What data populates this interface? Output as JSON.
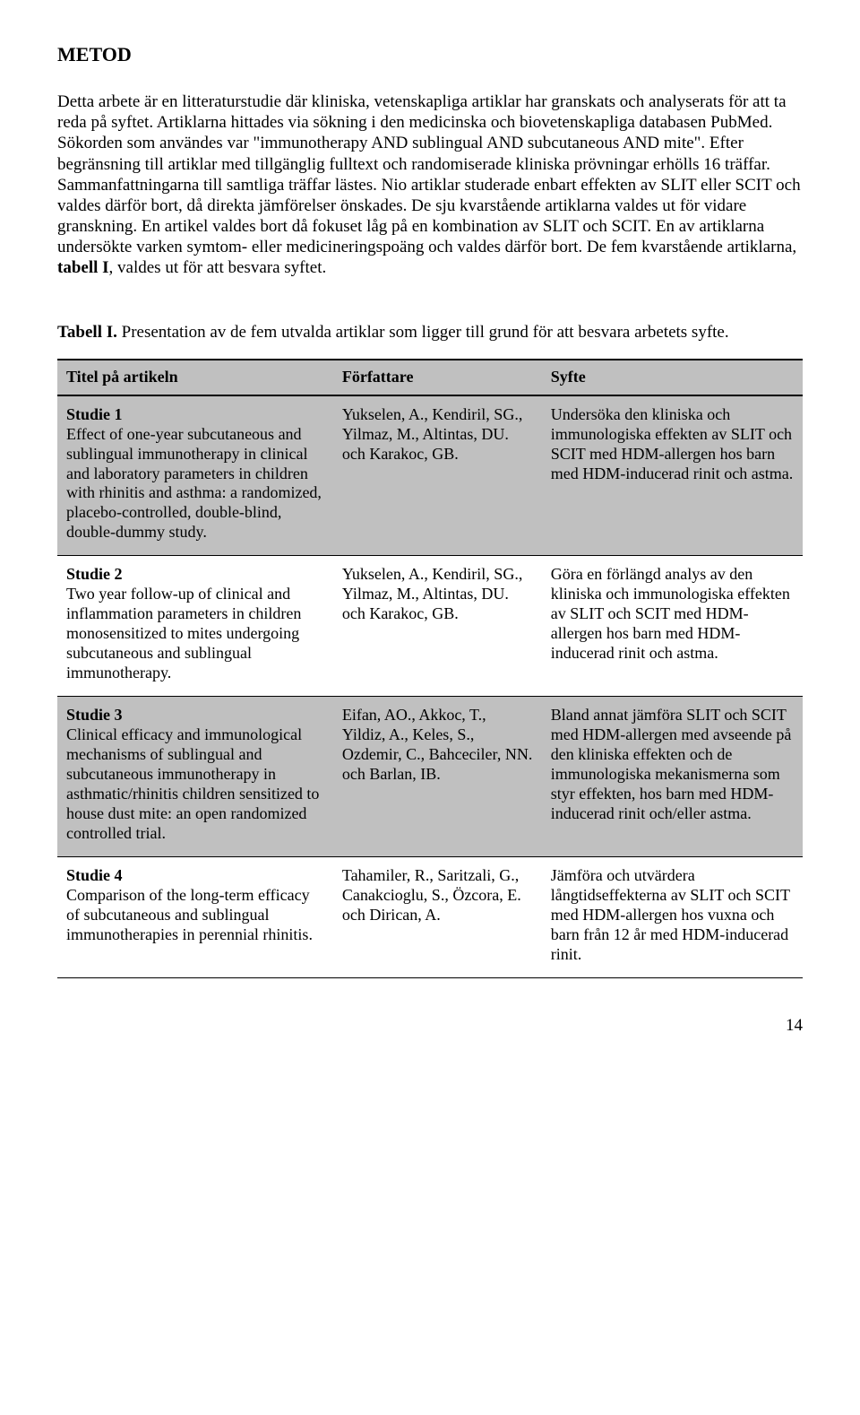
{
  "heading": "METOD",
  "paragraph_parts": {
    "p1": "Detta arbete är en litteraturstudie där kliniska, vetenskapliga artiklar har granskats och analyserats för att ta reda på syftet. Artiklarna hittades via sökning i den medicinska och biovetenskapliga databasen PubMed. Sökorden som användes var \"immunotherapy AND sublingual AND subcutaneous AND mite\". Efter begränsning till artiklar med tillgänglig fulltext och randomiserade kliniska prövningar erhölls 16 träffar. Sammanfattningarna till samtliga träffar lästes. Nio artiklar studerade enbart effekten av SLIT eller SCIT och valdes därför bort, då direkta jämförelser önskades. De sju kvarstående artiklarna valdes ut för vidare granskning. En artikel valdes bort då fokuset låg på en kombination av SLIT och SCIT. En av artiklarna undersökte varken symtom- eller medicineringspoäng och valdes därför bort. De fem kvarstående artiklarna, ",
    "bold": "tabell I",
    "p2": ", valdes ut för att besvara syftet."
  },
  "table_intro": {
    "bold": "Tabell I.",
    "rest": " Presentation av de fem utvalda artiklar som ligger till grund för att besvara arbetets syfte."
  },
  "columns": {
    "title": "Titel på artikeln",
    "authors": "Författare",
    "purpose": "Syfte"
  },
  "rows": [
    {
      "shaded": true,
      "study": "Studie 1",
      "title": "Effect of one-year subcutaneous and sublingual immunotherapy in clinical and laboratory parameters in children with rhinitis and asthma: a randomized, placebo-controlled, double-blind, double-dummy study.",
      "authors": "Yukselen, A., Kendiril, SG., Yilmaz, M., Altintas, DU. och Karakoc, GB.",
      "purpose": "Undersöka den kliniska och immunologiska effekten av SLIT och SCIT med HDM-allergen hos barn med HDM-inducerad rinit och astma."
    },
    {
      "shaded": false,
      "study": "Studie 2",
      "title": "Two year follow-up of clinical and inflammation parameters in children monosensitized to mites undergoing subcutaneous and sublingual immunotherapy.",
      "authors": "Yukselen, A., Kendiril, SG., Yilmaz, M., Altintas, DU. och Karakoc, GB.",
      "purpose": "Göra en förlängd analys av den kliniska och immunologiska effekten av SLIT och SCIT med HDM-allergen hos barn med HDM-inducerad rinit och astma."
    },
    {
      "shaded": true,
      "study": "Studie 3",
      "title": "Clinical efficacy and immunological mechanisms of sublingual and subcutaneous immunotherapy in asthmatic/rhinitis children sensitized to house dust mite: an open randomized controlled trial.",
      "authors": "Eifan, AO., Akkoc, T., Yildiz, A., Keles, S., Ozdemir, C., Bahceciler, NN. och Barlan, IB.",
      "purpose": "Bland annat jämföra SLIT och SCIT med HDM-allergen med avseende på den kliniska effekten och de immunologiska mekanismerna som styr effekten, hos barn med HDM-inducerad rinit och/eller astma."
    },
    {
      "shaded": false,
      "study": "Studie 4",
      "title": "Comparison of the long-term efficacy of subcutaneous and sublingual immunotherapies in perennial rhinitis.",
      "authors": "Tahamiler, R., Saritzali, G., Canakcioglu, S., Özcora, E. och Dirican, A.",
      "purpose": "Jämföra och utvärdera långtidseffekterna av SLIT och SCIT med HDM-allergen hos vuxna och barn från 12 år med HDM-inducerad rinit."
    }
  ],
  "page_number": "14"
}
